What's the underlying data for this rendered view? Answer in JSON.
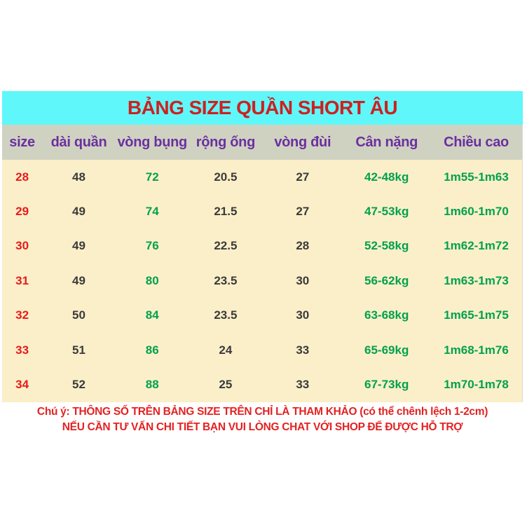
{
  "title_bar": {
    "text": "BẢNG SIZE QUẦN SHORT  ÂU"
  },
  "table": {
    "columns": [
      {
        "label": "size"
      },
      {
        "label": "dài quần"
      },
      {
        "label": "vòng bụng"
      },
      {
        "label": "rộng ống"
      },
      {
        "label": "vòng đùi"
      },
      {
        "label": "Cân nặng"
      },
      {
        "label": "Chiều cao"
      }
    ],
    "rows": [
      [
        "28",
        "48",
        "72",
        "20.5",
        "27",
        "42-48kg",
        "1m55-1m63"
      ],
      [
        "29",
        "49",
        "74",
        "21.5",
        "27",
        "47-53kg",
        "1m60-1m70"
      ],
      [
        "30",
        "49",
        "76",
        "22.5",
        "28",
        "52-58kg",
        "1m62-1m72"
      ],
      [
        "31",
        "49",
        "80",
        "23.5",
        "30",
        "56-62kg",
        "1m63-1m73"
      ],
      [
        "32",
        "50",
        "84",
        "23.5",
        "30",
        "63-68kg",
        "1m65-1m75"
      ],
      [
        "33",
        "51",
        "86",
        "24",
        "33",
        "65-69kg",
        "1m68-1m76"
      ],
      [
        "34",
        "52",
        "88",
        "25",
        "33",
        "67-73kg",
        "1m70-1m78"
      ]
    ]
  },
  "notes": {
    "line1": "Chú ý:  THÔNG SỐ TRÊN BẢNG SIZE TRÊN CHỈ LÀ THAM KHẢO (có thể chênh lệch 1-2cm)",
    "line2": "NẾU CẦN TƯ VẤN CHI TIẾT BẠN VUI LÒNG CHAT VỚI SHOP ĐỂ ĐƯỢC HỖ TRỢ"
  },
  "colors": {
    "title_bar_bg": "#5ff7fa",
    "title_text": "#ce2020",
    "header_bg": "#d0d2c1",
    "header_text": "#6a30a0",
    "body_bg": "#fbefc9",
    "size_text": "#e51c1c",
    "value_text": "#3a3a3a",
    "green_text": "#00a14e",
    "notes_text": "#e32222"
  }
}
